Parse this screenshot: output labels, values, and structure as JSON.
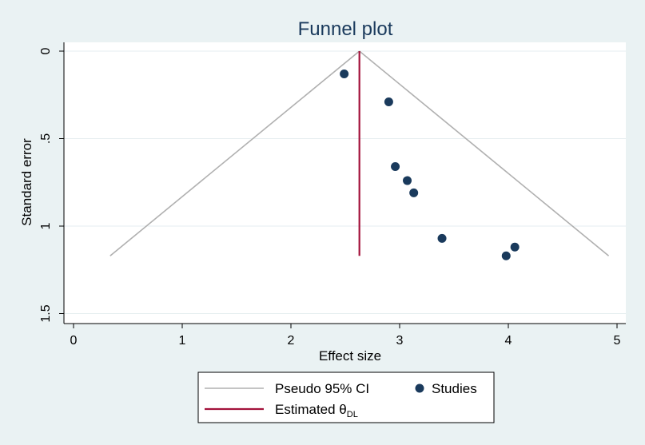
{
  "chart_data": {
    "type": "scatter",
    "title": "Funnel plot",
    "xlabel": "Effect size",
    "ylabel": "Standard error",
    "xlim": [
      0,
      5
    ],
    "ylim": [
      1.5,
      0
    ],
    "x_ticks": [
      {
        "value": 0,
        "label": "0"
      },
      {
        "value": 1,
        "label": "1"
      },
      {
        "value": 2,
        "label": "2"
      },
      {
        "value": 3,
        "label": "3"
      },
      {
        "value": 4,
        "label": "4"
      },
      {
        "value": 5,
        "label": "5"
      }
    ],
    "y_ticks": [
      {
        "value": 0,
        "label": "0"
      },
      {
        "value": 0.5,
        "label": ".5"
      },
      {
        "value": 1,
        "label": "1"
      },
      {
        "value": 1.5,
        "label": "1.5"
      }
    ],
    "grid": true,
    "estimate": 2.63,
    "max_se": 1.17,
    "studies": [
      {
        "x": 2.49,
        "y": 0.13
      },
      {
        "x": 2.9,
        "y": 0.29
      },
      {
        "x": 2.96,
        "y": 0.66
      },
      {
        "x": 3.07,
        "y": 0.74
      },
      {
        "x": 3.13,
        "y": 0.81
      },
      {
        "x": 3.39,
        "y": 1.07
      },
      {
        "x": 4.06,
        "y": 1.12
      },
      {
        "x": 3.98,
        "y": 1.17
      }
    ],
    "legend": {
      "placement": "bottom",
      "ci_label": "Pseudo 95% CI",
      "studies_label": "Studies",
      "estimate_label_main": "Estimated θ",
      "estimate_label_sub": "DL"
    },
    "colors": {
      "ci": "#b0b0b0",
      "estimate": "#a3123b",
      "studies": "#1a3a5c",
      "plot_bg": "#ffffff",
      "outer_bg": "#eaf2f3",
      "grid": "#e6eef0"
    }
  }
}
